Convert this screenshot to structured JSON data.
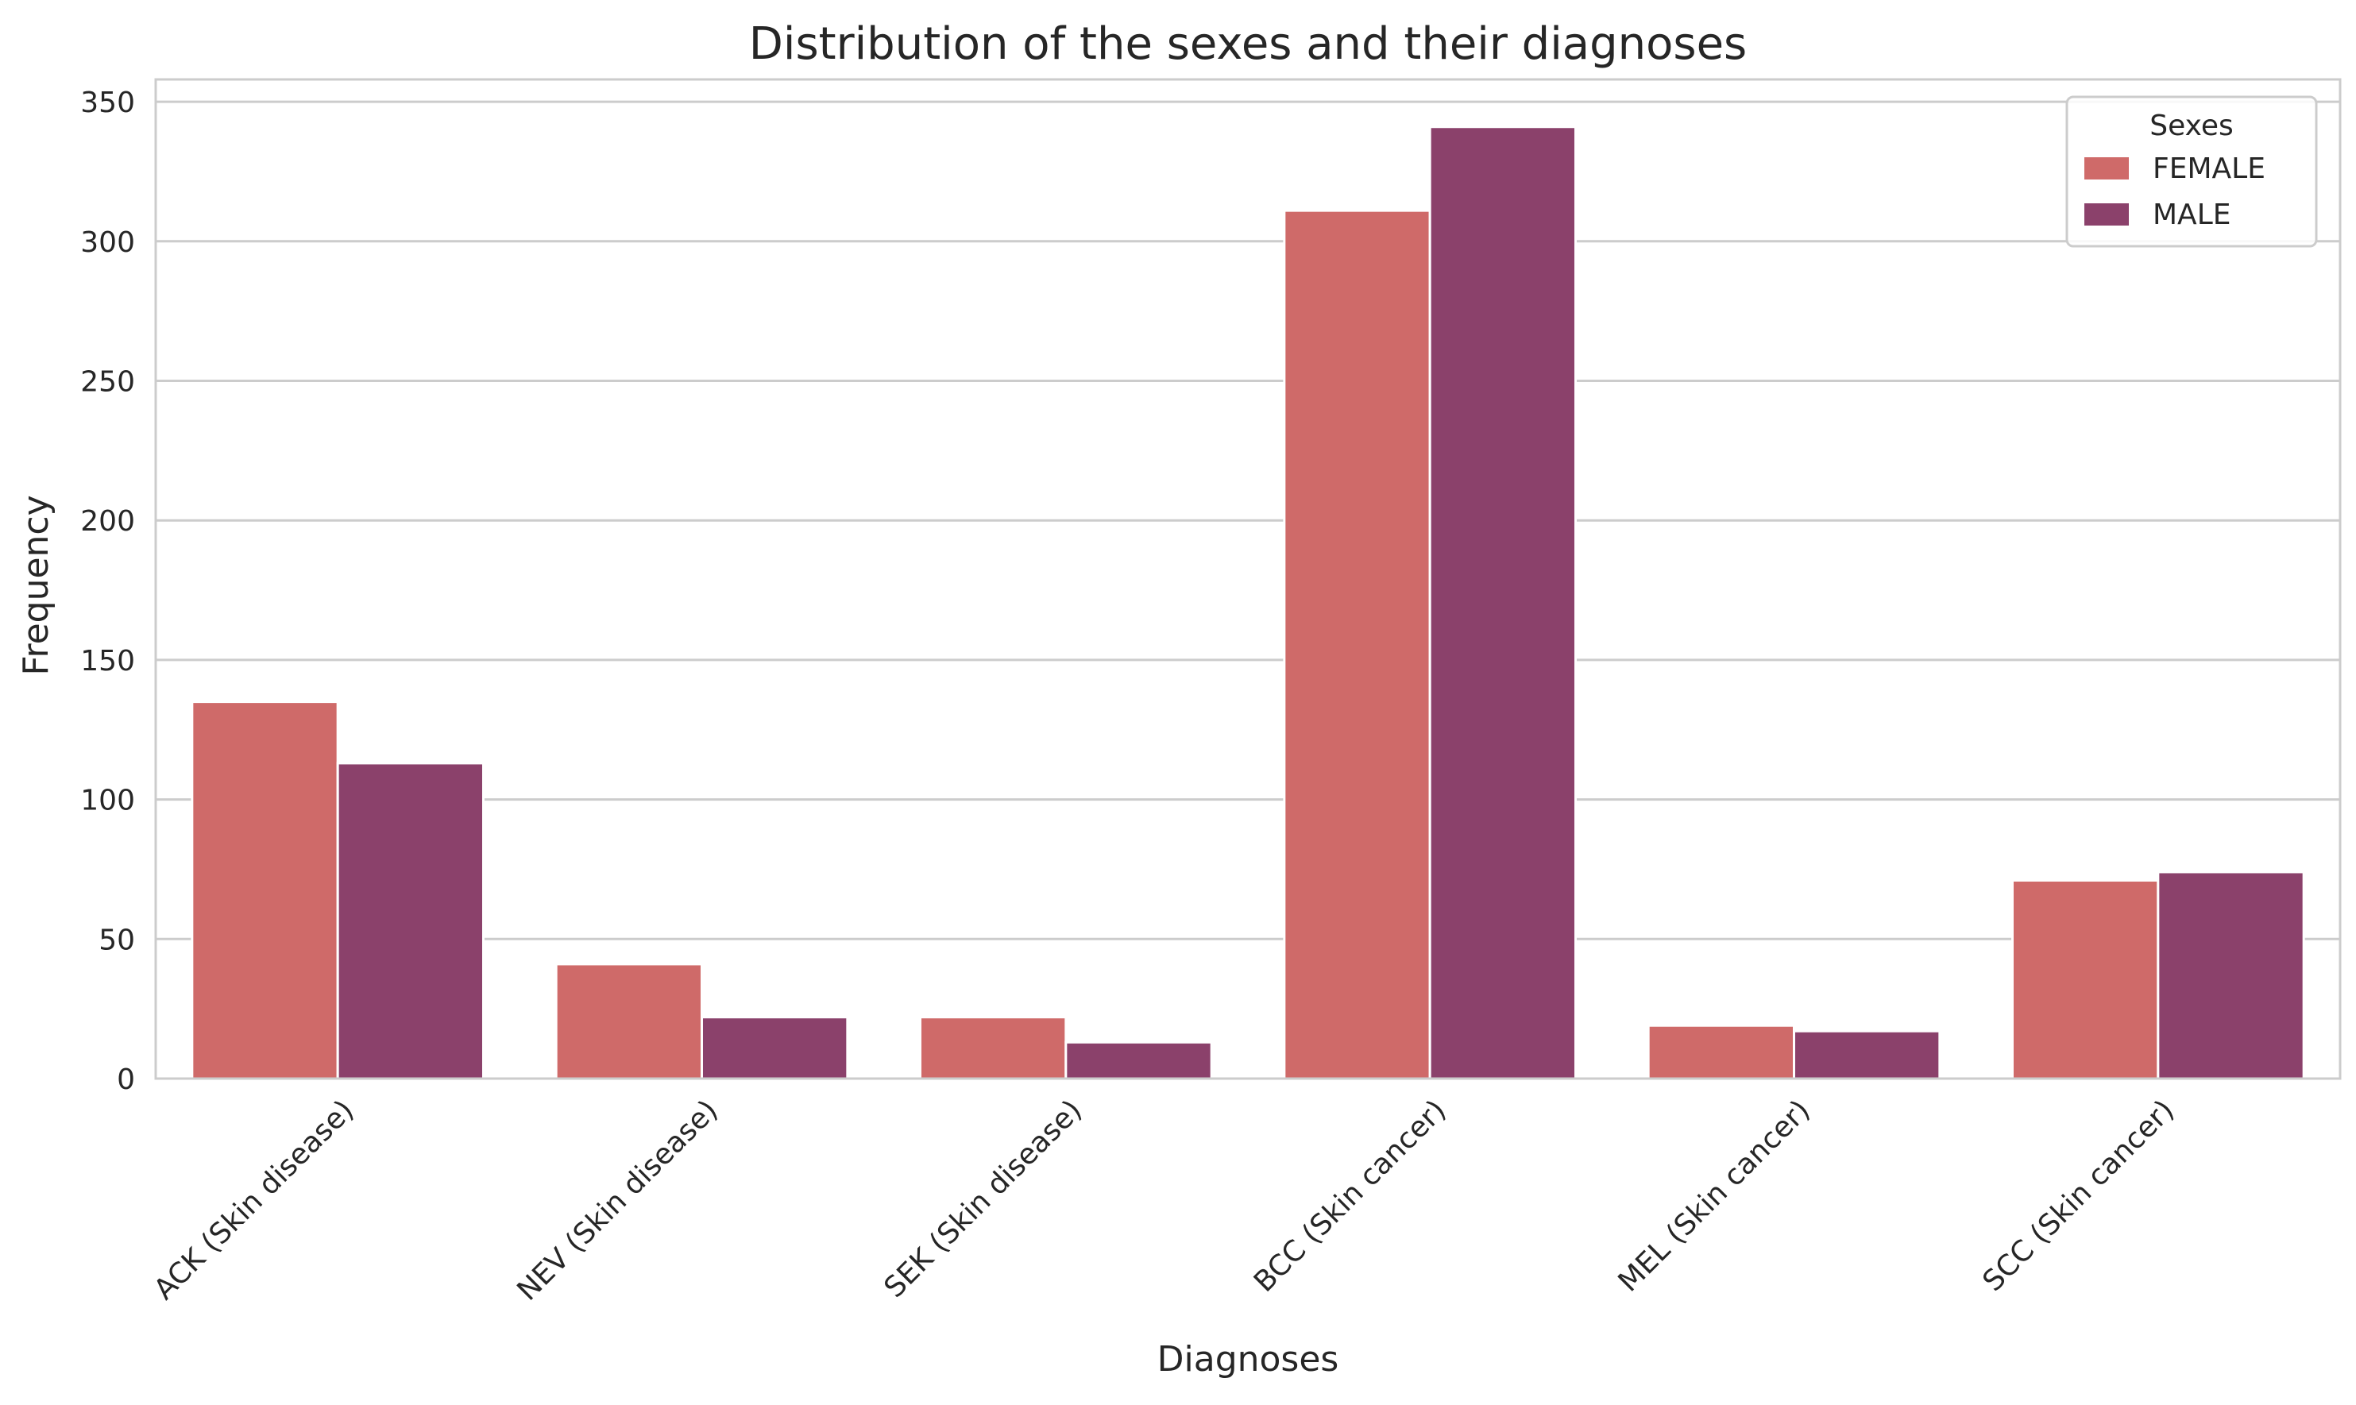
{
  "chart_data": {
    "type": "bar",
    "title": "Distribution of the sexes and their diagnoses",
    "xlabel": "Diagnoses",
    "ylabel": "Frequency",
    "categories": [
      "ACK (Skin disease)",
      "NEV (Skin disease)",
      "SEK (Skin disease)",
      "BCC (Skin cancer)",
      "MEL (Skin cancer)",
      "SCC (Skin cancer)"
    ],
    "series": [
      {
        "name": "FEMALE",
        "color": "#cf6a69",
        "values": [
          135,
          41,
          22,
          311,
          19,
          71
        ]
      },
      {
        "name": "MALE",
        "color": "#8b416b",
        "values": [
          113,
          22,
          13,
          341,
          17,
          74
        ]
      }
    ],
    "ylim": [
      0,
      358
    ],
    "yticks": [
      0,
      50,
      100,
      150,
      200,
      250,
      300,
      350
    ],
    "grid": true,
    "legend": {
      "title": "Sexes",
      "placement": "top-right"
    }
  }
}
